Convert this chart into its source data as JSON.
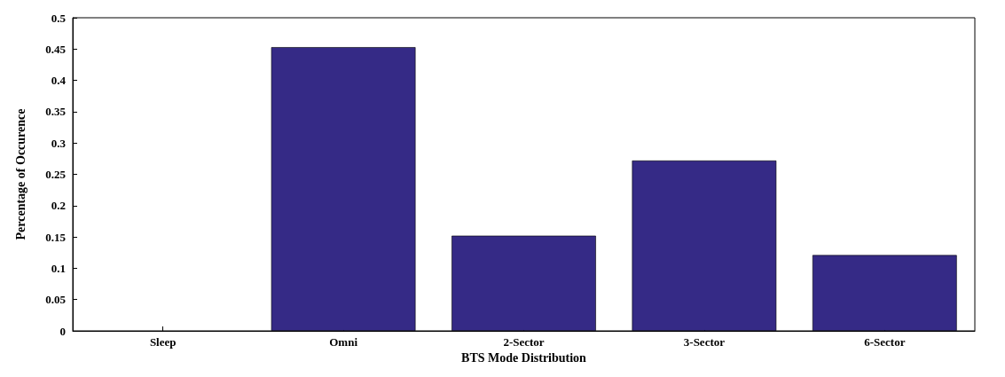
{
  "chart_data": {
    "type": "bar",
    "xlabel": "BTS Mode Distribution",
    "ylabel": "Percentage of Occurence",
    "categories": [
      "Sleep",
      "Omni",
      "2-Sector",
      "3-Sector",
      "6-Sector"
    ],
    "values": [
      0,
      0.453,
      0.152,
      0.272,
      0.121
    ],
    "color": "#352a86",
    "ylim": [
      0,
      0.5
    ],
    "yticks": [
      0,
      0.05,
      0.1,
      0.15,
      0.2,
      0.25,
      0.3,
      0.35,
      0.4,
      0.45,
      0.5
    ],
    "grid": false
  }
}
